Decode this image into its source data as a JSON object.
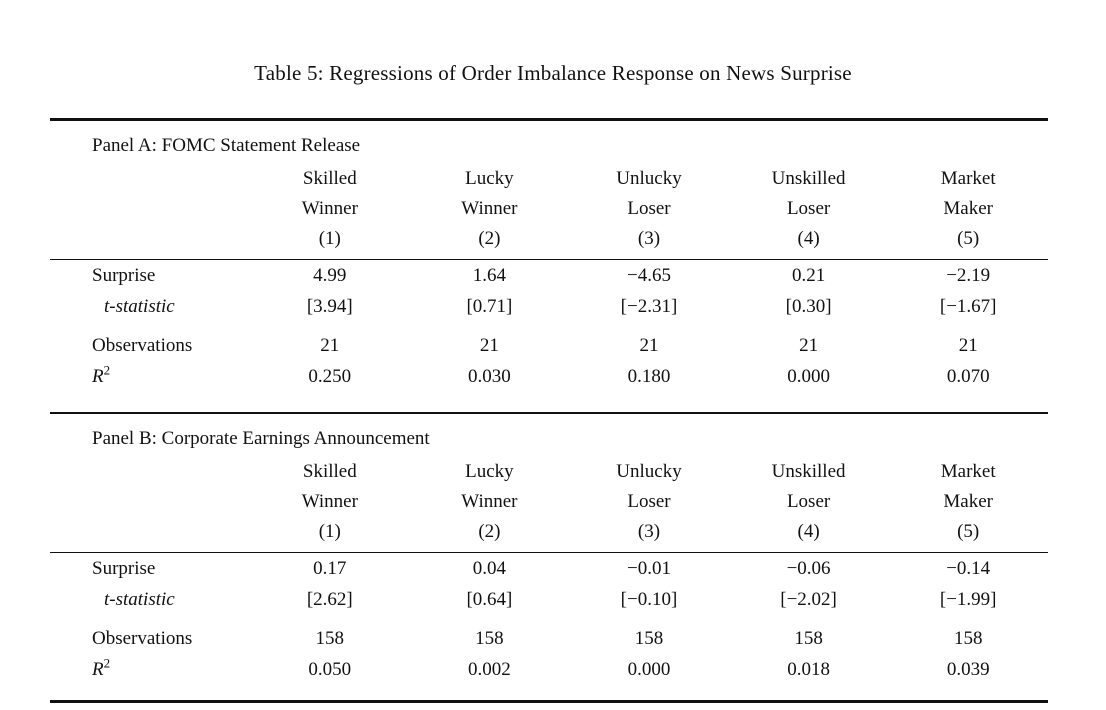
{
  "page": {
    "title": "Table 5: Regressions of Order Imbalance Response on News Surprise"
  },
  "colors": {
    "background": "#ffffff",
    "text": "#111111",
    "rule": "#111111"
  },
  "columns": {
    "line1": [
      "Skilled",
      "Lucky",
      "Unlucky",
      "Unskilled",
      "Market"
    ],
    "line2": [
      "Winner",
      "Winner",
      "Loser",
      "Loser",
      "Maker"
    ],
    "line3": [
      "(1)",
      "(2)",
      "(3)",
      "(4)",
      "(5)"
    ]
  },
  "row_labels": {
    "surprise": "Surprise",
    "tstat": "t-statistic",
    "observations": "Observations",
    "r2_base": "R",
    "r2_sup": "2"
  },
  "panels": [
    {
      "title": "Panel A: FOMC Statement Release",
      "surprise": [
        "4.99",
        "1.64",
        "−4.65",
        "0.21",
        "−2.19"
      ],
      "tstat": [
        "[3.94]",
        "[0.71]",
        "[−2.31]",
        "[0.30]",
        "[−1.67]"
      ],
      "observations": [
        "21",
        "21",
        "21",
        "21",
        "21"
      ],
      "r2": [
        "0.250",
        "0.030",
        "0.180",
        "0.000",
        "0.070"
      ]
    },
    {
      "title": "Panel B: Corporate Earnings Announcement",
      "surprise": [
        "0.17",
        "0.04",
        "−0.01",
        "−0.06",
        "−0.14"
      ],
      "tstat": [
        "[2.62]",
        "[0.64]",
        "[−0.10]",
        "[−2.02]",
        "[−1.99]"
      ],
      "observations": [
        "158",
        "158",
        "158",
        "158",
        "158"
      ],
      "r2": [
        "0.050",
        "0.002",
        "0.000",
        "0.018",
        "0.039"
      ]
    }
  ]
}
